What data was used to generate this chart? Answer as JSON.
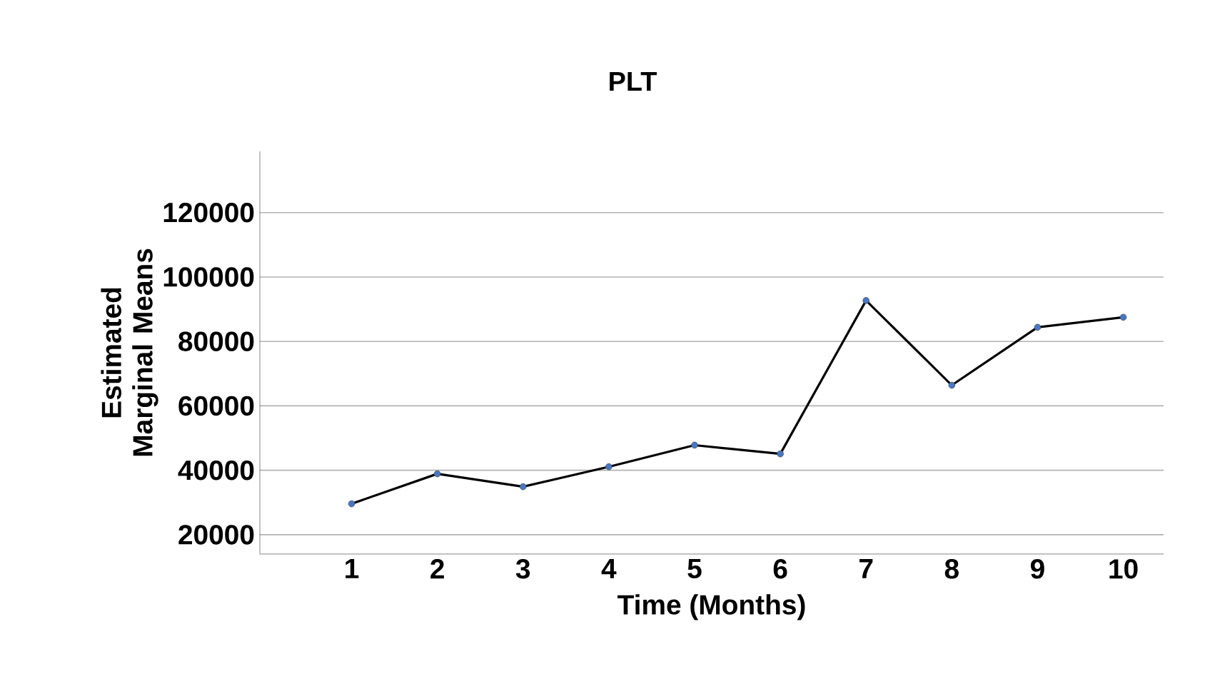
{
  "chart_data": {
    "type": "line",
    "title": "PLT",
    "xlabel": "Time (Months)",
    "ylabel": "Estimated Marginal Means",
    "categories": [
      "1",
      "2",
      "3",
      "4",
      "5",
      "6",
      "7",
      "8",
      "9",
      "10"
    ],
    "series": [
      {
        "color": "#000000",
        "values": [
          29600,
          38900,
          34900,
          41100,
          47800,
          45100,
          92700,
          66400,
          84400,
          87500
        ]
      }
    ],
    "ylim": [
      14000,
      139000
    ],
    "yticks": [
      20000,
      40000,
      60000,
      80000,
      100000,
      120000
    ],
    "grid": "y",
    "marker": "circle",
    "line_style": "solid"
  }
}
